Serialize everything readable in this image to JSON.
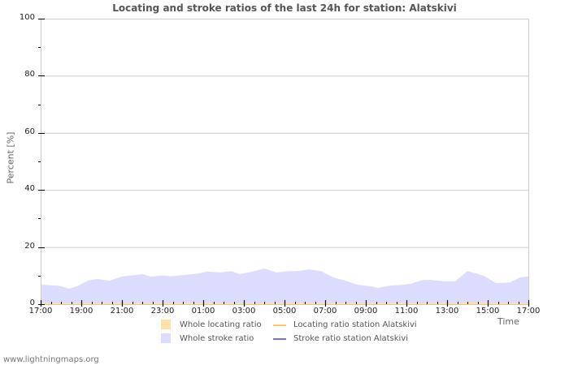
{
  "chart_data": {
    "type": "area",
    "title": "Locating and stroke ratios of the last 24h for station: Alatskivi",
    "xlabel": "Time",
    "ylabel": "Percent   [%]",
    "ylim": [
      0,
      100
    ],
    "yticks": [
      0,
      20,
      40,
      60,
      80,
      100
    ],
    "xticks": [
      "17:00",
      "19:00",
      "21:00",
      "23:00",
      "01:00",
      "03:00",
      "05:00",
      "07:00",
      "09:00",
      "11:00",
      "13:00",
      "15:00",
      "17:00"
    ],
    "grid": true,
    "legend_position": "bottom",
    "x_hours": [
      0.2,
      0.8,
      1.0,
      1.4,
      1.8,
      2.4,
      2.8,
      3.4,
      4.0,
      4.6,
      5.0,
      5.4,
      6.0,
      6.4,
      7.2,
      7.8,
      8.2,
      8.8,
      9.4,
      9.8,
      10.2,
      10.5,
      11.0,
      11.6,
      12.2,
      12.6,
      13.2,
      13.8,
      14.4,
      15.0,
      15.6,
      16.2,
      16.6,
      17.2,
      17.8,
      18.2,
      18.8,
      19.2,
      19.8,
      20.4,
      21.0,
      21.8,
      22.4,
      23.1,
      23.6,
      24.0
    ],
    "series": [
      {
        "name": "Whole stroke ratio",
        "kind": "area",
        "color": "#dcdcff",
        "values": [
          6.8,
          6.5,
          6.3,
          5.4,
          6.3,
          8.5,
          8.8,
          8.2,
          9.7,
          10.2,
          10.5,
          9.7,
          10.0,
          9.8,
          10.3,
          10.8,
          11.4,
          11.1,
          11.6,
          10.5,
          11.1,
          11.6,
          12.5,
          11.1,
          11.6,
          11.6,
          12.2,
          11.6,
          9.4,
          8.2,
          6.8,
          6.3,
          5.7,
          6.5,
          6.8,
          7.1,
          8.5,
          8.5,
          8.0,
          8.0,
          11.6,
          10.0,
          7.4,
          7.6,
          9.4,
          9.7
        ]
      },
      {
        "name": "Whole locating ratio",
        "kind": "area",
        "color": "#ffe0a8",
        "values": [
          0.3,
          0.3,
          0.3,
          0.2,
          0.3,
          0.3,
          0.4,
          0.4,
          0.4,
          0.4,
          0.4,
          0.4,
          0.4,
          0.4,
          0.4,
          0.4,
          0.5,
          0.5,
          0.5,
          0.4,
          0.5,
          0.5,
          0.6,
          0.6,
          0.6,
          0.6,
          0.6,
          0.6,
          0.5,
          0.4,
          0.4,
          0.3,
          0.3,
          0.3,
          0.4,
          0.4,
          0.5,
          0.5,
          0.5,
          0.5,
          0.8,
          0.7,
          0.5,
          0.5,
          0.5,
          0.5
        ]
      },
      {
        "name": "Locating ratio station Alatskivi",
        "kind": "line",
        "color": "#ffc860",
        "values": []
      },
      {
        "name": "Stroke ratio station Alatskivi",
        "kind": "line",
        "color": "#7070ee",
        "values": []
      }
    ]
  },
  "legend": {
    "whole_locating": "Whole locating ratio",
    "whole_stroke": "Whole stroke ratio",
    "locating_station": "Locating ratio station Alatskivi",
    "stroke_station": "Stroke ratio station Alatskivi"
  },
  "footer": "www.lightningmaps.org"
}
